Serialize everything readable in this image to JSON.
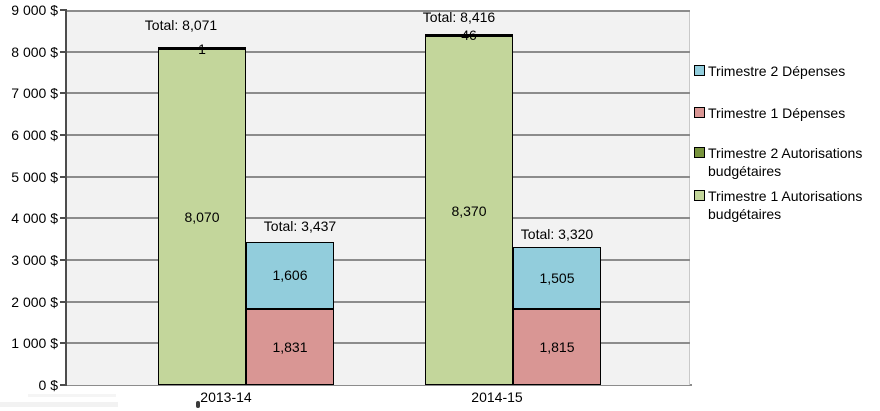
{
  "chart_data": {
    "type": "bar",
    "stacked": true,
    "title": "",
    "xlabel": "",
    "ylabel": "",
    "categories": [
      "2013-14",
      "2014-15"
    ],
    "ylim": [
      0,
      9000
    ],
    "ytick_step": 1000,
    "ytick_labels_top_to_bottom": [
      "9 000 $",
      "8 000 $",
      "7 000 $",
      "6 000 $",
      "5 000 $",
      "4 000 $",
      "3 000 $",
      "2 000 $",
      "1 000 $",
      "0 $"
    ],
    "grid": true,
    "legend_position": "right",
    "legend": [
      {
        "label": "Trimestre 2 Dépenses",
        "color": "#92CDDC"
      },
      {
        "label": "Trimestre 1 Dépenses",
        "color": "#D99694"
      },
      {
        "label": "Trimestre 2 Autorisations budgétaires",
        "color": "#77933C"
      },
      {
        "label": "Trimestre 1 Autorisations budgétaires",
        "color": "#C3D69B"
      }
    ],
    "groups": [
      {
        "category": "2013-14",
        "bars": [
          {
            "name": "autorisations-budgetaires",
            "total": 8071,
            "total_label": "Total: 8,071",
            "segments": [
              {
                "series": "Trimestre 1 Autorisations budgétaires",
                "value": 8070,
                "label": "8,070",
                "color": "#C3D69B"
              },
              {
                "series": "Trimestre 2 Autorisations budgétaires",
                "value": 1,
                "label": "1",
                "color": "#77933C"
              }
            ]
          },
          {
            "name": "depenses",
            "total": 3437,
            "total_label": "Total: 3,437",
            "segments": [
              {
                "series": "Trimestre 1 Dépenses",
                "value": 1831,
                "label": "1,831",
                "color": "#D99694"
              },
              {
                "series": "Trimestre 2 Dépenses",
                "value": 1606,
                "label": "1,606",
                "color": "#92CDDC"
              }
            ]
          }
        ]
      },
      {
        "category": "2014-15",
        "bars": [
          {
            "name": "autorisations-budgetaires",
            "total": 8416,
            "total_label": "Total: 8,416",
            "segments": [
              {
                "series": "Trimestre 1 Autorisations budgétaires",
                "value": 8370,
                "label": "8,370",
                "color": "#C3D69B"
              },
              {
                "series": "Trimestre 2 Autorisations budgétaires",
                "value": 46,
                "label": "46",
                "color": "#77933C"
              }
            ]
          },
          {
            "name": "depenses",
            "total": 3320,
            "total_label": "Total: 3,320",
            "segments": [
              {
                "series": "Trimestre 1 Dépenses",
                "value": 1815,
                "label": "1,815",
                "color": "#D99694"
              },
              {
                "series": "Trimestre 2 Dépenses",
                "value": 1505,
                "label": "1,505",
                "color": "#92CDDC"
              }
            ]
          }
        ]
      }
    ],
    "colors": {
      "plot_background": "#F2F2F2",
      "gridline": "#8C8C8C",
      "axis_line": "#4D4D4D",
      "bar_border": "#000000"
    }
  }
}
